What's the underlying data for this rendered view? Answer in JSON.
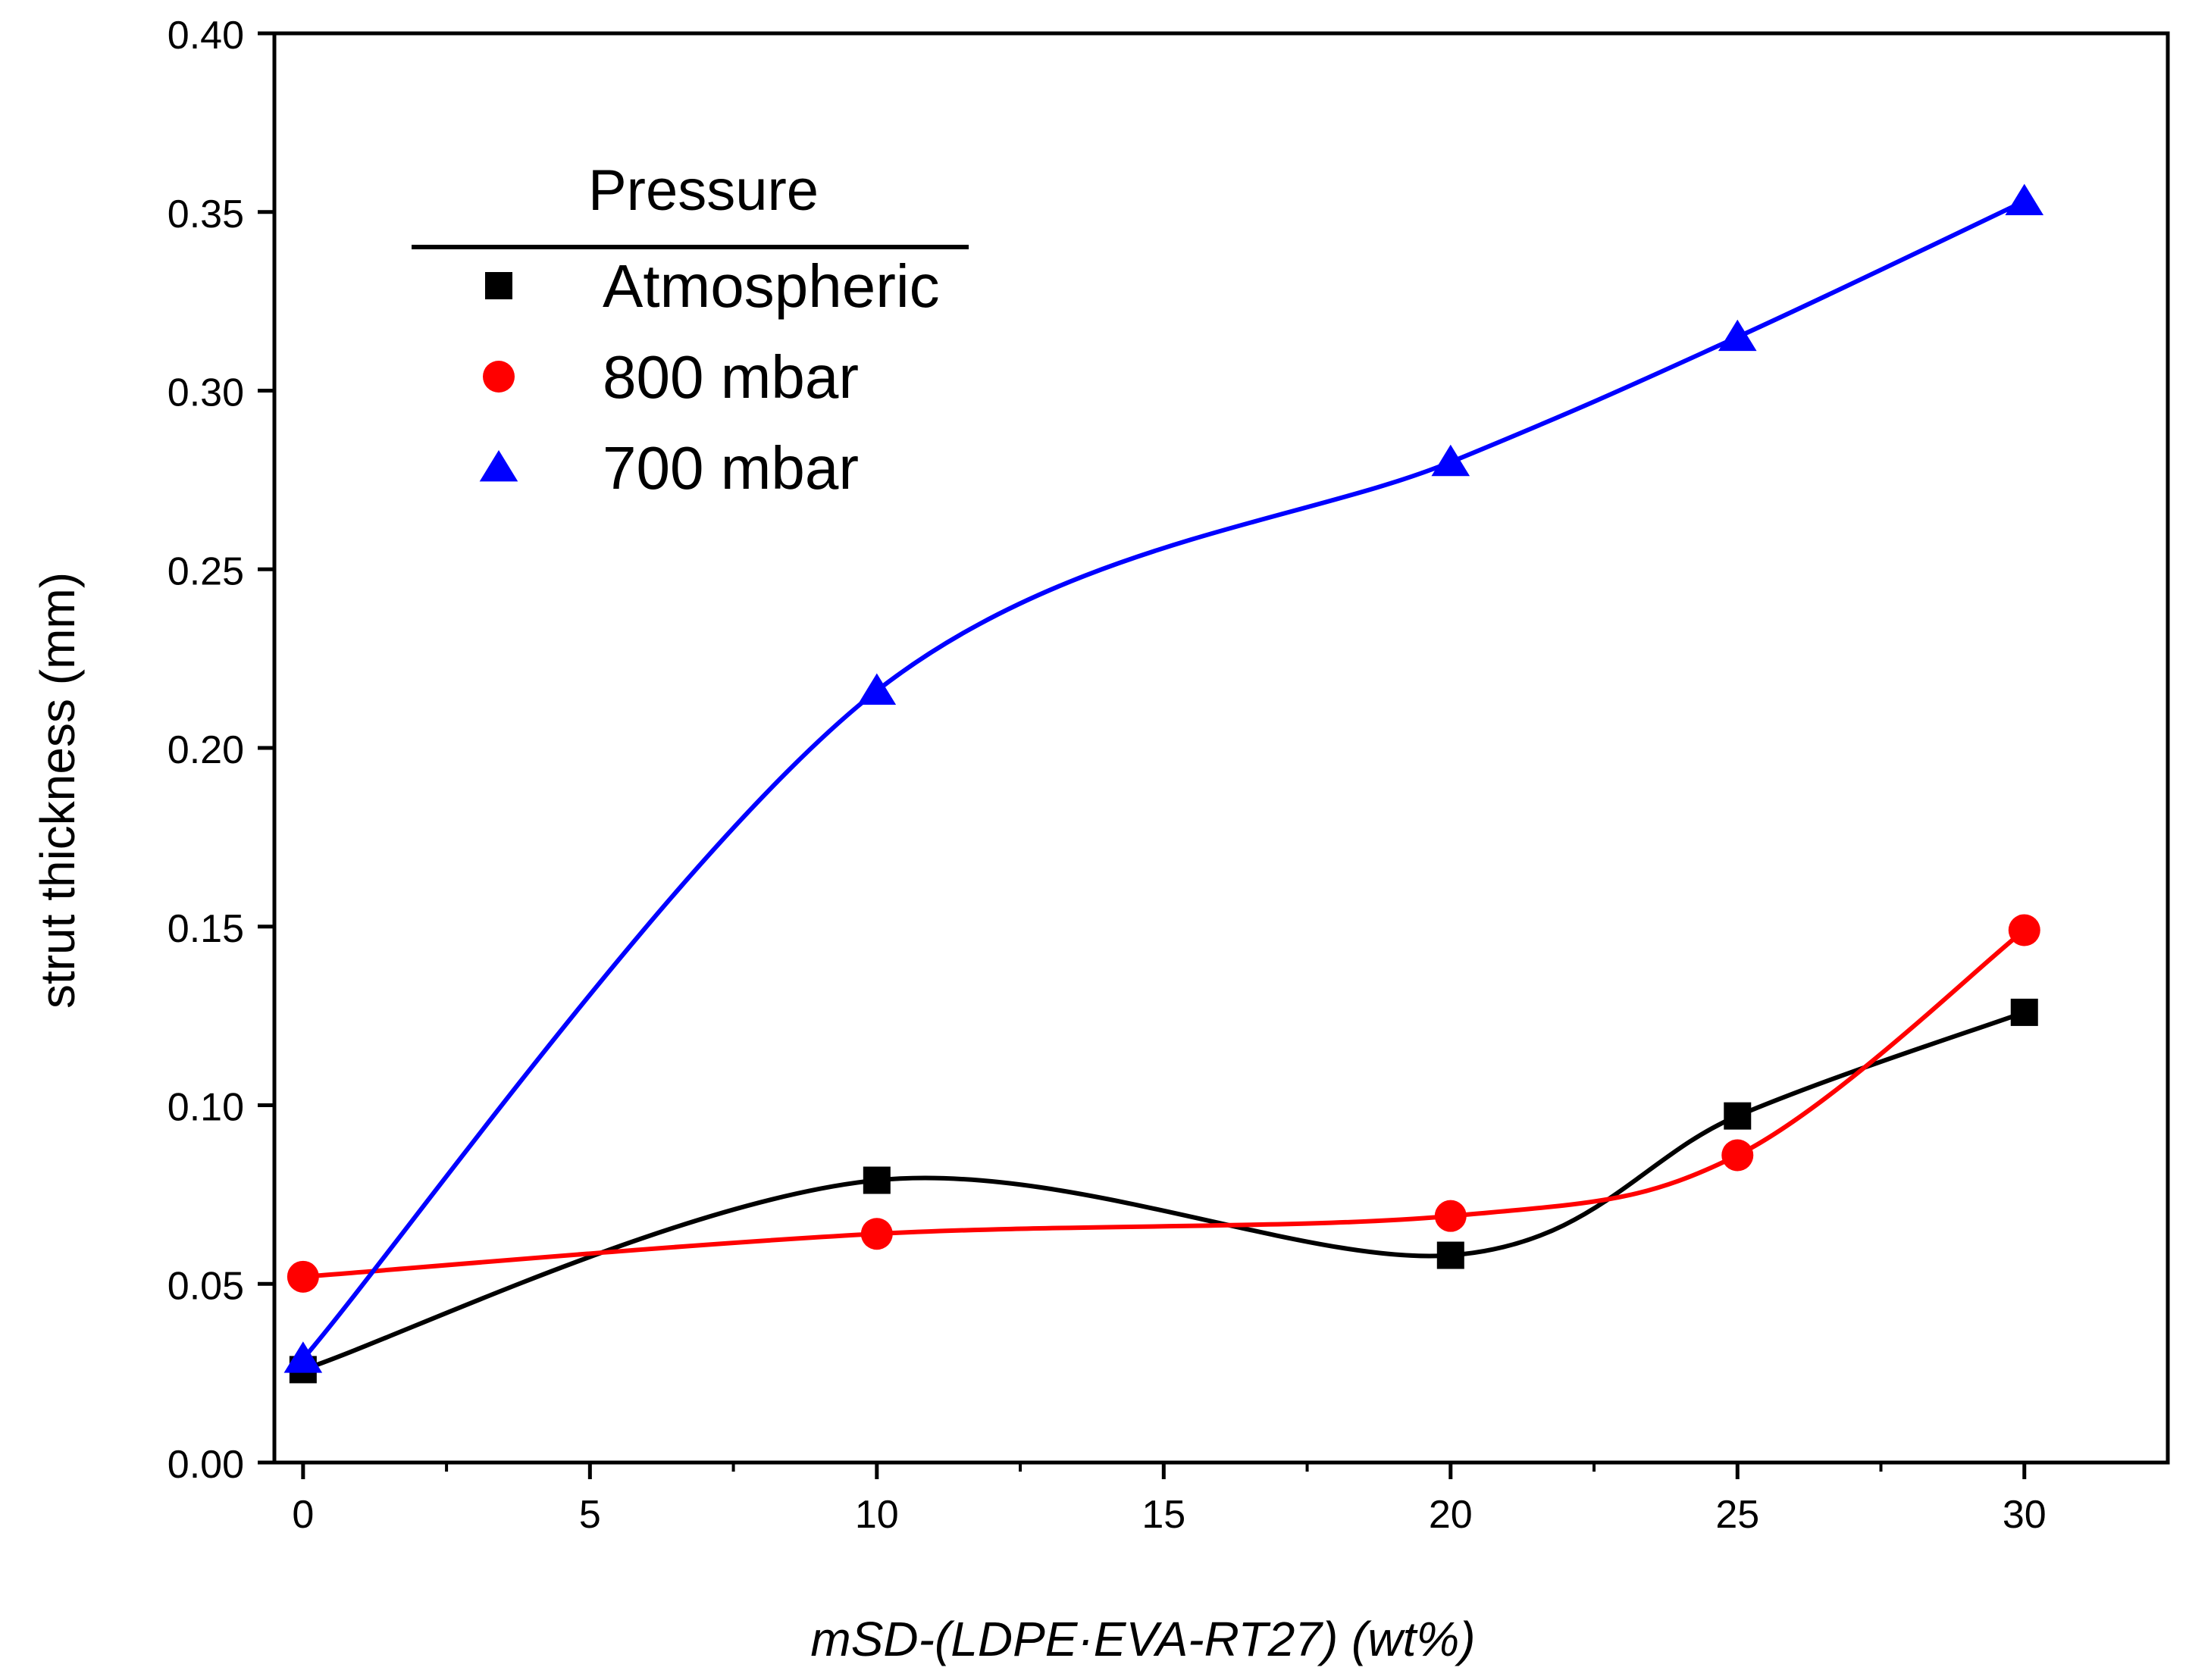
{
  "chart_data": {
    "type": "scatter",
    "title": "",
    "xlabel": "mSD-(LDPE·EVA-RT27) (wt%)",
    "ylabel": "strut thickness (mm)",
    "xlim": [
      -0.5,
      32.5
    ],
    "ylim": [
      0,
      0.4
    ],
    "xticks": [
      0,
      5,
      10,
      15,
      20,
      25,
      30
    ],
    "xtick_labels": [
      "0",
      "5",
      "10",
      "15",
      "20",
      "25",
      "30"
    ],
    "yticks": [
      0,
      0.05,
      0.1,
      0.15,
      0.2,
      0.25,
      0.3,
      0.35,
      0.4
    ],
    "ytick_labels": [
      "0.00",
      "0.05",
      "0.10",
      "0.15",
      "0.20",
      "0.25",
      "0.30",
      "0.35",
      "0.40"
    ],
    "grid": false,
    "legend": {
      "title": "Pressure",
      "position": "top-left"
    },
    "series": [
      {
        "name": "Atmospheric",
        "marker": "square",
        "color": "#000000",
        "x": [
          0,
          10,
          20,
          25,
          30
        ],
        "y": [
          0.026,
          0.079,
          0.058,
          0.097,
          0.126
        ]
      },
      {
        "name": "800 mbar",
        "marker": "circle",
        "color": "#ff0000",
        "x": [
          0,
          10,
          20,
          25,
          30
        ],
        "y": [
          0.052,
          0.064,
          0.069,
          0.086,
          0.149
        ]
      },
      {
        "name": "700 mbar",
        "marker": "triangle",
        "color": "#0000ff",
        "x": [
          0,
          10,
          20,
          25,
          30
        ],
        "y": [
          0.029,
          0.216,
          0.28,
          0.315,
          0.353
        ]
      }
    ]
  }
}
